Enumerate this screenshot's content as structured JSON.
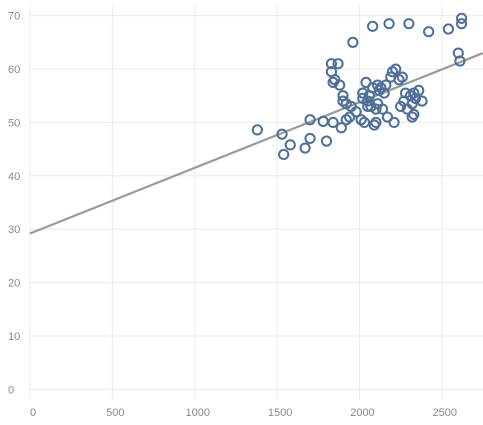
{
  "colors": {
    "point": "#4e6f98",
    "trend": "#9a9a9a",
    "grid": "#ececec",
    "tick": "#8a8a8a"
  },
  "chart_data": {
    "type": "scatter",
    "title": "",
    "xlabel": "",
    "ylabel": "",
    "xlim": [
      0,
      2750
    ],
    "ylim": [
      -2,
      72
    ],
    "xticks": [
      0,
      500,
      1000,
      1500,
      2000,
      2500
    ],
    "yticks": [
      0,
      10,
      20,
      30,
      40,
      50,
      60,
      70
    ],
    "grid": true,
    "trendline": {
      "x": [
        0,
        2750
      ],
      "y": [
        29.2,
        63.0
      ]
    },
    "series": [
      {
        "x": [
          1380,
          1530,
          1540,
          1580,
          1670,
          1700,
          1700,
          1780,
          1800,
          1830,
          1830,
          1840,
          1840,
          1850,
          1870,
          1880,
          1890,
          1900,
          1900,
          1920,
          1920,
          1940,
          1950,
          1960,
          1980,
          2010,
          2020,
          2020,
          2030,
          2040,
          2050,
          2050,
          2060,
          2070,
          2080,
          2080,
          2090,
          2100,
          2100,
          2110,
          2110,
          2120,
          2130,
          2140,
          2150,
          2160,
          2170,
          2180,
          2190,
          2200,
          2210,
          2220,
          2240,
          2250,
          2260,
          2270,
          2280,
          2290,
          2300,
          2310,
          2320,
          2320,
          2330,
          2330,
          2340,
          2360,
          2380,
          2420,
          2540,
          2600,
          2610,
          2620,
          2620
        ],
        "y": [
          48.6,
          47.8,
          44.0,
          45.8,
          45.2,
          47.0,
          50.5,
          50.2,
          46.5,
          59.5,
          61.0,
          57.5,
          50.0,
          58.0,
          61.0,
          57.0,
          49.0,
          54.0,
          55.0,
          50.5,
          53.5,
          51.0,
          53.0,
          65.0,
          52.0,
          50.5,
          54.5,
          55.5,
          50.0,
          57.5,
          54.0,
          53.0,
          55.0,
          53.0,
          56.5,
          68.0,
          49.5,
          50.0,
          52.5,
          57.0,
          53.5,
          56.0,
          56.5,
          52.5,
          55.5,
          57.0,
          51.0,
          68.5,
          58.5,
          59.5,
          50.0,
          60.0,
          58.0,
          53.0,
          58.5,
          54.0,
          55.5,
          52.5,
          68.5,
          55.0,
          51.0,
          53.5,
          51.5,
          55.5,
          54.5,
          56.0,
          54.0,
          67.0,
          67.5,
          63.0,
          61.5,
          69.5,
          68.5
        ]
      }
    ]
  }
}
